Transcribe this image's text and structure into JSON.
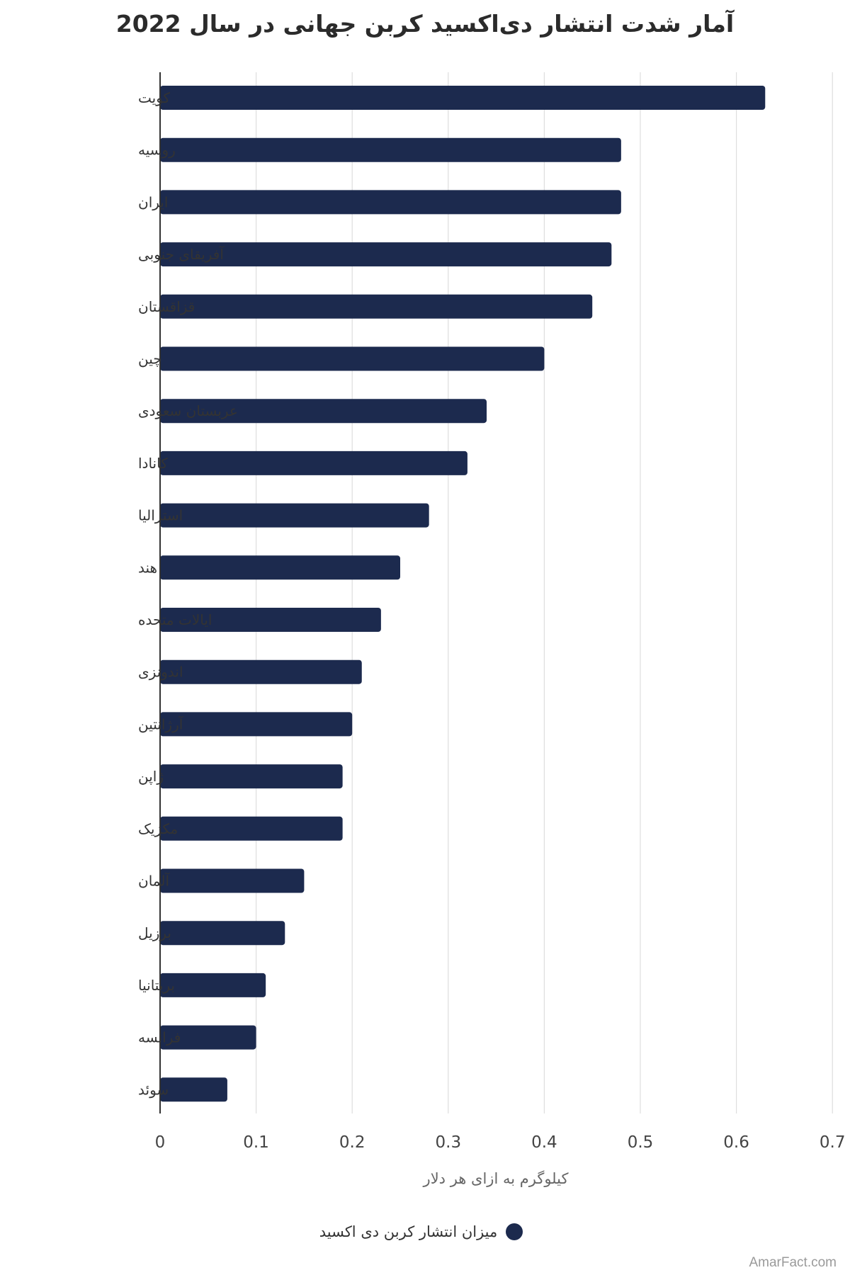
{
  "chart_data": {
    "type": "bar",
    "orientation": "horizontal",
    "title": "آمار شدت انتشار دی‌اکسید کربن جهانی در سال 2022",
    "xlabel": "کیلوگرم به ازای هر دلار",
    "ylabel": "",
    "xlim": [
      0,
      0.7
    ],
    "xticks": [
      "0",
      "0.1",
      "0.2",
      "0.3",
      "0.4",
      "0.5",
      "0.6",
      "0.7"
    ],
    "grid": "vertical",
    "legend_position": "bottom",
    "categories": [
      "کویت",
      "روسیه",
      "ایران",
      "آفریقای جنوبی",
      "قزاقستان",
      "چین",
      "عربستان سعودی",
      "کانادا",
      "استرالیا",
      "هند",
      "ایالات متحده",
      "اندونزی",
      "آرژانتین",
      "ژاپن",
      "مکزیک",
      "آلمان",
      "برزیل",
      "بریتانیا",
      "فرانسه",
      "سوئد"
    ],
    "series": [
      {
        "name": "میزان انتشار کربن دی اکسید",
        "color": "#1c2a4e",
        "values": [
          0.63,
          0.48,
          0.48,
          0.47,
          0.45,
          0.4,
          0.34,
          0.32,
          0.28,
          0.25,
          0.23,
          0.21,
          0.2,
          0.19,
          0.19,
          0.15,
          0.13,
          0.11,
          0.1,
          0.07
        ]
      }
    ]
  },
  "footer": {
    "credit": "AmarFact.com"
  }
}
